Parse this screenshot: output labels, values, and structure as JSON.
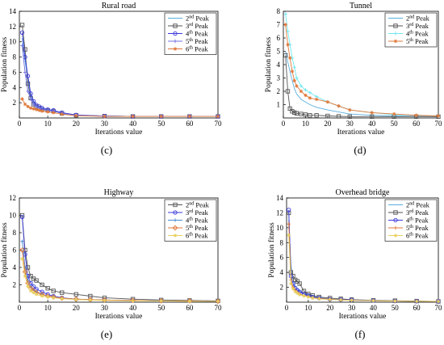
{
  "chart_data": [
    {
      "caption": "(c)",
      "type": "line",
      "title": "Rural road",
      "xlabel": "Iterations value",
      "ylabel": "Population fitness",
      "xlim": [
        0,
        70
      ],
      "ylim": [
        0,
        14
      ],
      "xticks": [
        0,
        10,
        20,
        30,
        40,
        50,
        60,
        70
      ],
      "yticks": [
        2,
        4,
        6,
        8,
        10,
        12,
        14
      ],
      "legend_position": "top-right",
      "series": [
        {
          "name": "2nd Peak",
          "ordinal": "2",
          "suffix": "nd",
          "color": "#5aaee0",
          "marker": "none",
          "x": [
            1,
            2,
            3,
            4,
            5,
            6,
            7,
            8,
            10,
            12,
            15,
            20,
            30,
            40,
            50,
            60,
            70
          ],
          "y": [
            10.5,
            7.5,
            5.0,
            3.0,
            2.0,
            1.6,
            1.4,
            1.2,
            1.0,
            0.9,
            0.6,
            0.35,
            0.25,
            0.2,
            0.2,
            0.2,
            0.2
          ]
        },
        {
          "name": "3rd Peak",
          "ordinal": "3",
          "suffix": "rd",
          "color": "#555555",
          "marker": "square",
          "x": [
            1,
            2,
            3,
            4,
            5,
            6,
            7,
            8,
            10,
            12,
            15,
            20,
            30,
            40,
            50,
            60,
            70
          ],
          "y": [
            12.2,
            9.0,
            4.5,
            2.6,
            1.8,
            1.5,
            1.3,
            1.1,
            1.0,
            0.9,
            0.6,
            0.35,
            0.25,
            0.2,
            0.2,
            0.2,
            0.2
          ]
        },
        {
          "name": "4th Peak",
          "ordinal": "4",
          "suffix": "th",
          "color": "#3a3adc",
          "marker": "circle",
          "x": [
            1,
            2,
            3,
            4,
            5,
            6,
            7,
            8,
            10,
            12,
            15,
            20,
            30,
            40,
            50,
            60,
            70
          ],
          "y": [
            11.2,
            8.0,
            5.5,
            3.2,
            2.2,
            1.7,
            1.5,
            1.3,
            1.1,
            1.0,
            0.7,
            0.4,
            0.25,
            0.2,
            0.2,
            0.2,
            0.2
          ]
        },
        {
          "name": "5th Peak",
          "ordinal": "5",
          "suffix": "th",
          "color": "#7070e0",
          "marker": "plus",
          "x": [
            1,
            2,
            3,
            4,
            5,
            6,
            7,
            8,
            10,
            12,
            15,
            20,
            30,
            40,
            50,
            60,
            70
          ],
          "y": [
            9.5,
            6.0,
            3.5,
            2.5,
            1.8,
            1.5,
            1.3,
            1.2,
            1.0,
            0.9,
            0.6,
            0.35,
            0.25,
            0.2,
            0.2,
            0.2,
            0.2
          ]
        },
        {
          "name": "6th Peak",
          "ordinal": "6",
          "suffix": "th",
          "color": "#e0783a",
          "marker": "star",
          "x": [
            1,
            2,
            3,
            4,
            5,
            6,
            7,
            8,
            10,
            12,
            15,
            20,
            30,
            40,
            50,
            60,
            70
          ],
          "y": [
            2.5,
            1.8,
            1.5,
            1.3,
            1.2,
            1.1,
            1.0,
            0.9,
            0.8,
            0.7,
            0.5,
            0.3,
            0.2,
            0.2,
            0.2,
            0.2,
            0.2
          ]
        }
      ]
    },
    {
      "caption": "(d)",
      "type": "line",
      "title": "Tunnel",
      "xlabel": "Iterations value",
      "ylabel": "Population fitness",
      "xlim": [
        0,
        70
      ],
      "ylim": [
        0,
        8
      ],
      "xticks": [
        0,
        10,
        20,
        30,
        40,
        50,
        60,
        70
      ],
      "yticks": [
        1,
        2,
        3,
        4,
        5,
        6,
        7,
        8
      ],
      "legend_position": "top-right",
      "series": [
        {
          "name": "2nd Peak",
          "ordinal": "2",
          "suffix": "nd",
          "color": "#5aaee0",
          "marker": "none",
          "x": [
            1,
            2,
            3,
            4,
            5,
            6,
            8,
            10,
            12,
            15,
            20,
            25,
            30,
            40,
            50,
            60,
            70
          ],
          "y": [
            5.0,
            4.2,
            3.5,
            2.8,
            2.2,
            1.8,
            1.4,
            1.2,
            1.0,
            0.8,
            0.6,
            0.45,
            0.3,
            0.2,
            0.15,
            0.12,
            0.1
          ]
        },
        {
          "name": "3rd Peak",
          "ordinal": "3",
          "suffix": "rd",
          "color": "#555555",
          "marker": "square",
          "x": [
            1,
            2,
            3,
            4,
            5,
            6,
            8,
            10,
            12,
            15,
            20,
            25,
            30,
            40,
            50,
            60,
            70
          ],
          "y": [
            4.7,
            2.0,
            0.7,
            0.5,
            0.4,
            0.35,
            0.3,
            0.25,
            0.2,
            0.2,
            0.15,
            0.12,
            0.1,
            0.1,
            0.1,
            0.1,
            0.1
          ]
        },
        {
          "name": "4th Peak",
          "ordinal": "4",
          "suffix": "th",
          "color": "#6fe8f0",
          "marker": "plus",
          "x": [
            1,
            2,
            3,
            4,
            5,
            6,
            8,
            10,
            12,
            15,
            20,
            25,
            30,
            40,
            50,
            60,
            70
          ],
          "y": [
            7.8,
            6.5,
            5.5,
            4.5,
            3.8,
            3.0,
            2.4,
            2.1,
            1.9,
            1.6,
            1.2,
            0.9,
            0.6,
            0.4,
            0.25,
            0.2,
            0.15
          ]
        },
        {
          "name": "5th Peak",
          "ordinal": "5",
          "suffix": "th",
          "color": "#e0783a",
          "marker": "star",
          "x": [
            1,
            2,
            3,
            4,
            5,
            6,
            8,
            10,
            12,
            15,
            20,
            25,
            30,
            40,
            50,
            60,
            70
          ],
          "y": [
            7.0,
            5.5,
            4.5,
            3.5,
            2.8,
            2.4,
            2.0,
            1.7,
            1.5,
            1.4,
            1.2,
            0.9,
            0.6,
            0.4,
            0.3,
            0.2,
            0.15
          ]
        }
      ]
    },
    {
      "caption": "(e)",
      "type": "line",
      "title": "Highway",
      "xlabel": "Iterations value",
      "ylabel": "Population fitness",
      "xlim": [
        0,
        70
      ],
      "ylim": [
        0,
        12
      ],
      "xticks": [
        0,
        10,
        20,
        30,
        40,
        50,
        60,
        70
      ],
      "yticks": [
        2,
        4,
        6,
        8,
        10,
        12
      ],
      "legend_position": "top-right",
      "series": [
        {
          "name": "2nd Peak",
          "ordinal": "2",
          "suffix": "nd",
          "color": "#555555",
          "marker": "square",
          "x": [
            1,
            2,
            3,
            4,
            5,
            6,
            8,
            10,
            12,
            15,
            20,
            25,
            30,
            40,
            50,
            60,
            70
          ],
          "y": [
            10.0,
            6.0,
            4.0,
            3.0,
            2.7,
            2.5,
            2.0,
            1.6,
            1.3,
            1.1,
            0.9,
            0.7,
            0.5,
            0.35,
            0.25,
            0.2,
            0.15
          ]
        },
        {
          "name": "3rd Peak",
          "ordinal": "3",
          "suffix": "rd",
          "color": "#3a3adc",
          "marker": "circle",
          "x": [
            1,
            2,
            3,
            4,
            5,
            6,
            8,
            10,
            12,
            15,
            20,
            25,
            30,
            40,
            50,
            60,
            70
          ],
          "y": [
            9.8,
            5.5,
            3.0,
            2.2,
            1.8,
            1.5,
            1.2,
            0.9,
            0.7,
            0.5,
            0.35,
            0.3,
            0.25,
            0.2,
            0.15,
            0.15,
            0.1
          ]
        },
        {
          "name": "4th Peak",
          "ordinal": "4",
          "suffix": "th",
          "color": "#4a8ad0",
          "marker": "plus",
          "x": [
            1,
            2,
            3,
            4,
            5,
            6,
            8,
            10,
            12,
            15,
            20,
            25,
            30,
            40,
            50,
            60,
            70
          ],
          "y": [
            7.0,
            4.0,
            2.5,
            1.8,
            1.4,
            1.2,
            0.9,
            0.7,
            0.6,
            0.45,
            0.35,
            0.3,
            0.25,
            0.2,
            0.15,
            0.15,
            0.1
          ]
        },
        {
          "name": "5th Peak",
          "ordinal": "5",
          "suffix": "th",
          "color": "#e0783a",
          "marker": "diamond",
          "x": [
            1,
            2,
            3,
            4,
            5,
            6,
            8,
            10,
            12,
            15,
            20,
            25,
            30,
            40,
            50,
            60,
            70
          ],
          "y": [
            6.0,
            3.5,
            2.2,
            1.6,
            1.3,
            1.1,
            0.9,
            0.7,
            0.6,
            0.45,
            0.35,
            0.3,
            0.25,
            0.2,
            0.15,
            0.15,
            0.1
          ]
        },
        {
          "name": "6th Peak",
          "ordinal": "6",
          "suffix": "th",
          "color": "#e8d060",
          "marker": "star",
          "x": [
            1,
            2,
            3,
            4,
            5,
            6,
            8,
            10,
            12,
            15,
            20,
            25,
            30,
            40,
            50,
            60,
            70
          ],
          "y": [
            5.0,
            3.0,
            1.8,
            1.3,
            1.1,
            0.9,
            0.7,
            0.6,
            0.5,
            0.4,
            0.3,
            0.25,
            0.2,
            0.15,
            0.15,
            0.1,
            0.1
          ]
        }
      ]
    },
    {
      "caption": "(f)",
      "type": "line",
      "title": "Overhead bridge",
      "xlabel": "Iterations value",
      "ylabel": "Population fitness",
      "xlim": [
        0,
        70
      ],
      "ylim": [
        0,
        14
      ],
      "xticks": [
        0,
        10,
        20,
        30,
        40,
        50,
        60,
        70
      ],
      "yticks": [
        2,
        4,
        6,
        8,
        10,
        12,
        14
      ],
      "legend_position": "top-right",
      "series": [
        {
          "name": "2nd Peak",
          "ordinal": "2",
          "suffix": "nd",
          "color": "#5aaee0",
          "marker": "none",
          "x": [
            1,
            2,
            3,
            4,
            5,
            6,
            8,
            10,
            12,
            15,
            20,
            25,
            30,
            40,
            50,
            60,
            70
          ],
          "y": [
            11.0,
            5.0,
            3.0,
            2.2,
            1.8,
            1.5,
            1.2,
            1.0,
            0.8,
            0.6,
            0.45,
            0.35,
            0.3,
            0.2,
            0.15,
            0.12,
            0.1
          ]
        },
        {
          "name": "3rd Peak",
          "ordinal": "3",
          "suffix": "rd",
          "color": "#555555",
          "marker": "square",
          "x": [
            1,
            2,
            3,
            4,
            5,
            6,
            8,
            10,
            12,
            15,
            20,
            25,
            30,
            40,
            50,
            60,
            70
          ],
          "y": [
            12.0,
            4.0,
            3.5,
            3.0,
            2.8,
            2.5,
            1.5,
            1.1,
            0.9,
            0.7,
            0.55,
            0.45,
            0.35,
            0.25,
            0.2,
            0.15,
            0.1
          ]
        },
        {
          "name": "4th Peak",
          "ordinal": "4",
          "suffix": "th",
          "color": "#3a3adc",
          "marker": "circle",
          "x": [
            1,
            2,
            3,
            4,
            5,
            6,
            8,
            10,
            12,
            15,
            20,
            25,
            30,
            40,
            50,
            60,
            70
          ],
          "y": [
            12.4,
            3.5,
            2.5,
            1.9,
            1.6,
            1.4,
            1.1,
            0.9,
            0.7,
            0.55,
            0.4,
            0.35,
            0.3,
            0.2,
            0.15,
            0.12,
            0.1
          ]
        },
        {
          "name": "5th Peak",
          "ordinal": "5",
          "suffix": "th",
          "color": "#e0783a",
          "marker": "plus",
          "x": [
            1,
            2,
            3,
            4,
            5,
            6,
            8,
            10,
            12,
            15,
            20,
            25,
            30,
            40,
            50,
            60,
            70
          ],
          "y": [
            10.5,
            3.0,
            2.0,
            1.6,
            1.3,
            1.1,
            0.9,
            0.75,
            0.6,
            0.5,
            0.4,
            0.3,
            0.25,
            0.2,
            0.15,
            0.12,
            0.1
          ]
        },
        {
          "name": "6th Peak",
          "ordinal": "6",
          "suffix": "th",
          "color": "#e8d060",
          "marker": "star",
          "x": [
            1,
            2,
            3,
            4,
            5,
            6,
            8,
            10,
            12,
            15,
            20,
            25,
            30,
            40,
            50,
            60,
            70
          ],
          "y": [
            9.0,
            2.5,
            1.8,
            1.4,
            1.2,
            1.0,
            0.85,
            0.7,
            0.55,
            0.45,
            0.35,
            0.3,
            0.25,
            0.2,
            0.15,
            0.12,
            0.1
          ]
        }
      ]
    }
  ]
}
